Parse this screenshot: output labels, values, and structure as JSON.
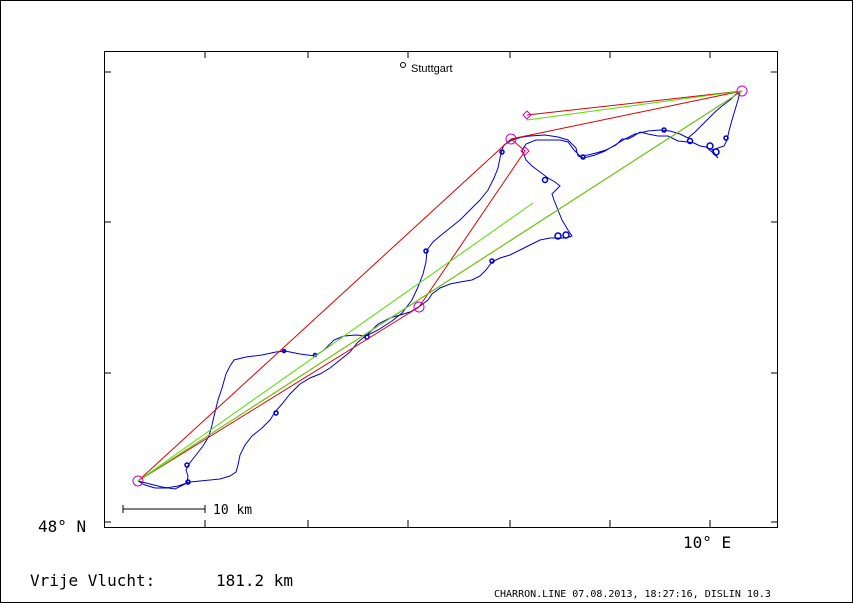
{
  "map": {
    "city_label": "Stuttgart",
    "lat_label": "48° N",
    "lon_label": "10° E",
    "scale_label": "10 km",
    "colors": {
      "track": "#0000cc",
      "route": "#dd0000",
      "alt": "#55dd00",
      "turnpoint": "#cc00cc"
    }
  },
  "footer": {
    "flight_label": "Vrije Vlucht:",
    "distance": "181.2 km",
    "credit": "CHARRON.LINE 07.08.2013, 18:27:16, DISLIN 10.3"
  }
}
